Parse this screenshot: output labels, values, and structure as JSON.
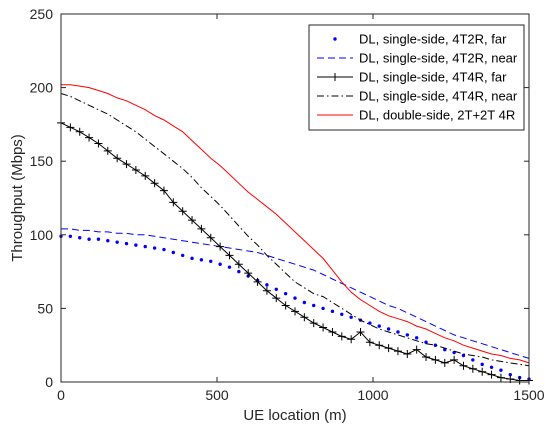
{
  "chart_data": {
    "type": "line",
    "xlabel": "UE location (m)",
    "ylabel": "Throughput (Mbps)",
    "xlim": [
      0,
      1500
    ],
    "ylim": [
      0,
      250
    ],
    "xticks": [
      0,
      500,
      1000,
      1500
    ],
    "yticks": [
      0,
      50,
      100,
      150,
      200,
      250
    ],
    "grid": false,
    "legend_position": "top-right",
    "x": [
      0,
      30,
      60,
      90,
      120,
      150,
      180,
      210,
      240,
      270,
      300,
      330,
      360,
      390,
      420,
      450,
      480,
      510,
      540,
      570,
      600,
      630,
      660,
      690,
      720,
      750,
      780,
      810,
      840,
      870,
      900,
      930,
      960,
      990,
      1020,
      1050,
      1080,
      1110,
      1140,
      1170,
      1200,
      1230,
      1260,
      1290,
      1320,
      1350,
      1380,
      1410,
      1440,
      1470,
      1500
    ],
    "series": [
      {
        "name": "DL, single-side, 4T2R, far",
        "color": "#0000ff",
        "style": "dots",
        "values": [
          99,
          99,
          98,
          97,
          97,
          96,
          95,
          94,
          93,
          92,
          91,
          90,
          88,
          86,
          84,
          83,
          82,
          80,
          78,
          75,
          72,
          69,
          66,
          63,
          60,
          57,
          54,
          52,
          50,
          48,
          46,
          44,
          42,
          40,
          38,
          36,
          34,
          32,
          30,
          27,
          25,
          22,
          20,
          18,
          15,
          12,
          10,
          8,
          5,
          3,
          2
        ]
      },
      {
        "name": "DL, single-side, 4T2R, near",
        "color": "#0000ff",
        "style": "dashed",
        "values": [
          104,
          104,
          103,
          103,
          102,
          102,
          101,
          101,
          100,
          100,
          99,
          98,
          97,
          96,
          95,
          94,
          93,
          92,
          91,
          90,
          89,
          88,
          86,
          84,
          82,
          80,
          78,
          76,
          73,
          70,
          67,
          64,
          61,
          58,
          55,
          52,
          50,
          47,
          44,
          41,
          38,
          35,
          32,
          30,
          28,
          26,
          24,
          22,
          20,
          18,
          16
        ]
      },
      {
        "name": "DL, single-side, 4T4R, far",
        "color": "#000000",
        "style": "line-plus",
        "values": [
          176,
          173,
          170,
          166,
          162,
          157,
          152,
          148,
          144,
          140,
          135,
          130,
          122,
          116,
          110,
          104,
          98,
          92,
          86,
          80,
          74,
          68,
          62,
          57,
          52,
          48,
          44,
          40,
          37,
          34,
          31,
          29,
          34,
          27,
          25,
          23,
          21,
          19,
          22,
          17,
          15,
          13,
          15,
          11,
          9,
          7,
          5,
          3,
          2,
          1,
          1
        ]
      },
      {
        "name": "DL, single-side, 4T4R, near",
        "color": "#000000",
        "style": "dashdot",
        "values": [
          196,
          194,
          191,
          188,
          185,
          182,
          178,
          174,
          170,
          165,
          160,
          155,
          150,
          145,
          139,
          132,
          126,
          120,
          113,
          106,
          99,
          93,
          86,
          80,
          74,
          68,
          64,
          60,
          58,
          54,
          50,
          46,
          42,
          39,
          36,
          34,
          32,
          30,
          28,
          26,
          25,
          23,
          21,
          19,
          18,
          17,
          15,
          14,
          13,
          12,
          11
        ]
      },
      {
        "name": "DL, double-side, 2T+2T 4R",
        "color": "#ff0000",
        "style": "solid",
        "values": [
          202,
          202,
          201,
          200,
          198,
          196,
          193,
          191,
          188,
          185,
          181,
          178,
          174,
          170,
          164,
          158,
          152,
          147,
          141,
          135,
          129,
          124,
          119,
          114,
          108,
          102,
          96,
          90,
          84,
          76,
          68,
          61,
          56,
          52,
          48,
          45,
          43,
          41,
          38,
          36,
          33,
          30,
          28,
          25,
          23,
          21,
          19,
          18,
          16,
          15,
          13
        ]
      }
    ]
  }
}
